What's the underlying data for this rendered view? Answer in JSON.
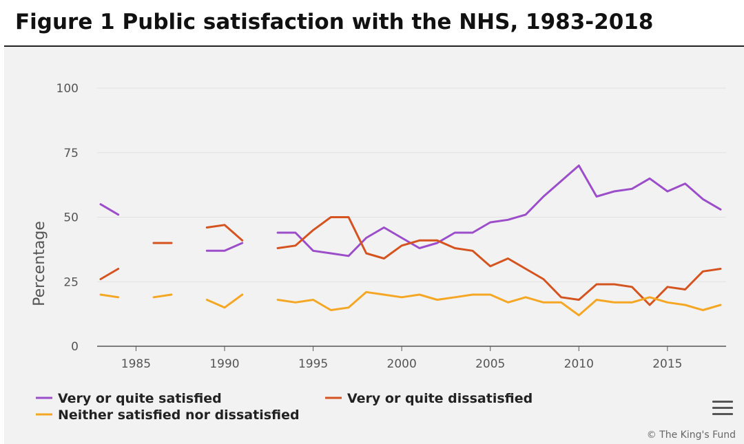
{
  "title": "Figure 1 Public satisfaction with the NHS, 1983-2018",
  "credits": "© The King's Fund",
  "menu_icon": "hamburger-menu-icon",
  "chart_data": {
    "type": "line",
    "title": "Figure 1 Public satisfaction with the NHS, 1983-2018",
    "xlabel": "",
    "ylabel": "Percentage",
    "xlim": [
      1983,
      2018
    ],
    "ylim": [
      0,
      100
    ],
    "xticks": [
      1985,
      1990,
      1995,
      2000,
      2005,
      2010,
      2015
    ],
    "yticks": [
      0,
      25,
      50,
      75,
      100
    ],
    "grid": "horizontal",
    "legend_position": "bottom",
    "x": [
      1983,
      1984,
      1985,
      1986,
      1987,
      1988,
      1989,
      1990,
      1991,
      1992,
      1993,
      1994,
      1995,
      1996,
      1997,
      1998,
      1999,
      2000,
      2001,
      2002,
      2003,
      2004,
      2005,
      2006,
      2007,
      2008,
      2009,
      2010,
      2011,
      2012,
      2013,
      2014,
      2015,
      2016,
      2017,
      2018
    ],
    "series": [
      {
        "name": "Very or quite satisfied",
        "color": "#9b4dca",
        "values": [
          55,
          51,
          null,
          40,
          40,
          null,
          37,
          37,
          40,
          null,
          44,
          44,
          37,
          36,
          35,
          42,
          46,
          42,
          38,
          40,
          44,
          44,
          48,
          49,
          51,
          58,
          64,
          70,
          58,
          60,
          61,
          65,
          60,
          63,
          57,
          53
        ]
      },
      {
        "name": "Very or quite dissatisfied",
        "color": "#d4531f",
        "values": [
          26,
          30,
          null,
          40,
          40,
          null,
          46,
          47,
          41,
          null,
          38,
          39,
          45,
          50,
          50,
          36,
          34,
          39,
          41,
          41,
          38,
          37,
          31,
          34,
          30,
          26,
          19,
          18,
          24,
          24,
          23,
          16,
          23,
          22,
          29,
          30
        ]
      },
      {
        "name": "Neither satisfied nor dissatisfied",
        "color": "#f5a623",
        "values": [
          20,
          19,
          null,
          19,
          20,
          null,
          18,
          15,
          20,
          null,
          18,
          17,
          18,
          14,
          15,
          21,
          20,
          19,
          20,
          18,
          19,
          20,
          20,
          17,
          19,
          17,
          17,
          12,
          18,
          17,
          17,
          19,
          17,
          16,
          14,
          16
        ]
      }
    ]
  }
}
